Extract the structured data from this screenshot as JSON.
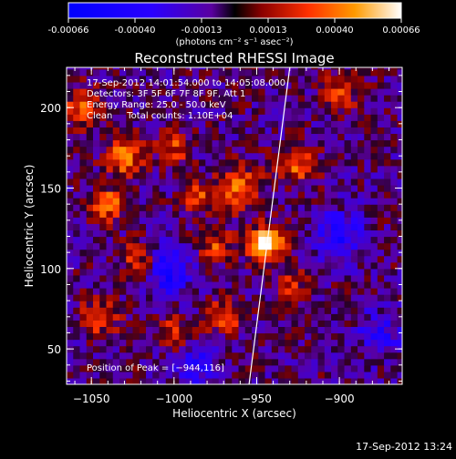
{
  "colorbar": {
    "ticks": [
      "-0.00066",
      "-0.00040",
      "-0.00013",
      "0.00013",
      "0.00040",
      "0.00066"
    ],
    "unit": "(photons cm⁻² s⁻¹ asec⁻²)"
  },
  "chart_data": {
    "type": "heatmap",
    "title": "Reconstructed RHESSI Image",
    "xlabel": "Heliocentric X (arcsec)",
    "ylabel": "Heliocentric Y (arcsec)",
    "xlim": [
      -1065,
      -862
    ],
    "ylim": [
      28,
      225
    ],
    "x_ticks": [
      -1050,
      -1000,
      -950,
      -900
    ],
    "x_tick_labels": [
      "−1050",
      "−1000",
      "−950",
      "−900"
    ],
    "y_ticks": [
      50,
      100,
      150,
      200
    ],
    "y_tick_labels": [
      "50",
      "100",
      "150",
      "200"
    ],
    "value_range": [
      -0.00066,
      0.00066
    ],
    "annotations": [
      "17-Sep-2012 14:01:54.000 to 14:05:08.000",
      "Detectors: 3F 5F 6F 7F 8F 9F, Att 1",
      "Energy Range: 25.0 - 50.0 keV",
      "Clean     Total counts: 1.10E+04"
    ],
    "peak_label": "Position of Peak = [−944,116]",
    "peak": {
      "x": -944,
      "y": 116
    },
    "limb_line": [
      [
        -955,
        25
      ],
      [
        -930,
        225
      ]
    ],
    "blobs": [
      {
        "x": -944,
        "y": 116,
        "amp": 1.0,
        "sigma": 8
      },
      {
        "x": -960,
        "y": 150,
        "amp": 0.7,
        "sigma": 9
      },
      {
        "x": -1030,
        "y": 170,
        "amp": 0.75,
        "sigma": 8
      },
      {
        "x": -1040,
        "y": 140,
        "amp": 0.7,
        "sigma": 7
      },
      {
        "x": -1055,
        "y": 200,
        "amp": 0.65,
        "sigma": 8
      },
      {
        "x": -1020,
        "y": 105,
        "amp": 0.6,
        "sigma": 8
      },
      {
        "x": -985,
        "y": 145,
        "amp": 0.55,
        "sigma": 7
      },
      {
        "x": -1000,
        "y": 175,
        "amp": 0.5,
        "sigma": 7
      },
      {
        "x": -975,
        "y": 115,
        "amp": 0.55,
        "sigma": 7
      },
      {
        "x": -970,
        "y": 70,
        "amp": 0.6,
        "sigma": 7
      },
      {
        "x": -1000,
        "y": 60,
        "amp": 0.5,
        "sigma": 7
      },
      {
        "x": -1045,
        "y": 70,
        "amp": 0.55,
        "sigma": 8
      },
      {
        "x": -925,
        "y": 165,
        "amp": 0.6,
        "sigma": 8
      },
      {
        "x": -900,
        "y": 210,
        "amp": 0.5,
        "sigma": 8
      },
      {
        "x": -930,
        "y": 90,
        "amp": 0.45,
        "sigma": 7
      },
      {
        "x": -900,
        "y": 120,
        "amp": -0.55,
        "sigma": 10
      },
      {
        "x": -1005,
        "y": 100,
        "amp": -0.7,
        "sigma": 10
      },
      {
        "x": -985,
        "y": 40,
        "amp": -0.45,
        "sigma": 9
      },
      {
        "x": -875,
        "y": 60,
        "amp": -0.4,
        "sigma": 10
      }
    ]
  },
  "footer": {
    "timestamp": "17-Sep-2012 13:24"
  }
}
